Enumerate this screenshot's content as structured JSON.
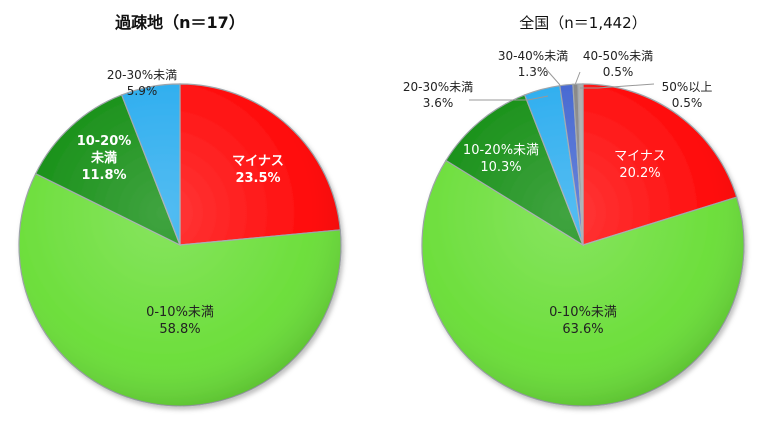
{
  "chart_data": [
    {
      "type": "pie",
      "title": "過疎地（n＝17）",
      "series": [
        {
          "label_lines": [
            "マイナス",
            "23.5%"
          ],
          "category": "マイナス",
          "value": 23.5,
          "color": "#ff0000",
          "text_color": "#ffffff",
          "bold": true
        },
        {
          "label_lines": [
            "0-10%未満",
            "58.8%"
          ],
          "category": "0-10%未満",
          "value": 58.8,
          "color": "#66dd33",
          "text_color": "#222222",
          "bold": false
        },
        {
          "label_lines": [
            "10-20%",
            "未満",
            "11.8%"
          ],
          "category": "10-20%未満",
          "value": 11.8,
          "color": "#0b8a0b",
          "text_color": "#ffffff",
          "bold": true
        },
        {
          "label_lines": [
            "20-30%未満",
            "5.9%"
          ],
          "category": "20-30%未満",
          "value": 5.9,
          "color": "#22a9ee",
          "text_color": "#222222",
          "bold": false
        }
      ]
    },
    {
      "type": "pie",
      "title": "全国（n＝1,442）",
      "series": [
        {
          "label_lines": [
            "マイナス",
            "20.2%"
          ],
          "category": "マイナス",
          "value": 20.2,
          "color": "#ff0000",
          "text_color": "#ffffff",
          "bold": false
        },
        {
          "label_lines": [
            "0-10%未満",
            "63.6%"
          ],
          "category": "0-10%未満",
          "value": 63.6,
          "color": "#66dd33",
          "text_color": "#222222",
          "bold": false
        },
        {
          "label_lines": [
            "10-20%未満",
            "10.3%"
          ],
          "category": "10-20%未満",
          "value": 10.3,
          "color": "#0b8a0b",
          "text_color": "#ffffff",
          "bold": false
        },
        {
          "label_lines": [
            "20-30%未満",
            "3.6%"
          ],
          "category": "20-30%未満",
          "value": 3.6,
          "color": "#22a9ee",
          "text_color": "#222222",
          "bold": false
        },
        {
          "label_lines": [
            "30-40%未満",
            "1.3%"
          ],
          "category": "30-40%未満",
          "value": 1.3,
          "color": "#3b5fcf",
          "text_color": "#222222",
          "bold": false
        },
        {
          "label_lines": [
            "40-50%未満",
            "0.5%"
          ],
          "category": "40-50%未満",
          "value": 0.5,
          "color": "#808080",
          "text_color": "#222222",
          "bold": false
        },
        {
          "label_lines": [
            "50%以上",
            "0.5%"
          ],
          "category": "50%以上",
          "value": 0.5,
          "color": "#a8a8a8",
          "text_color": "#222222",
          "bold": false
        }
      ]
    }
  ]
}
